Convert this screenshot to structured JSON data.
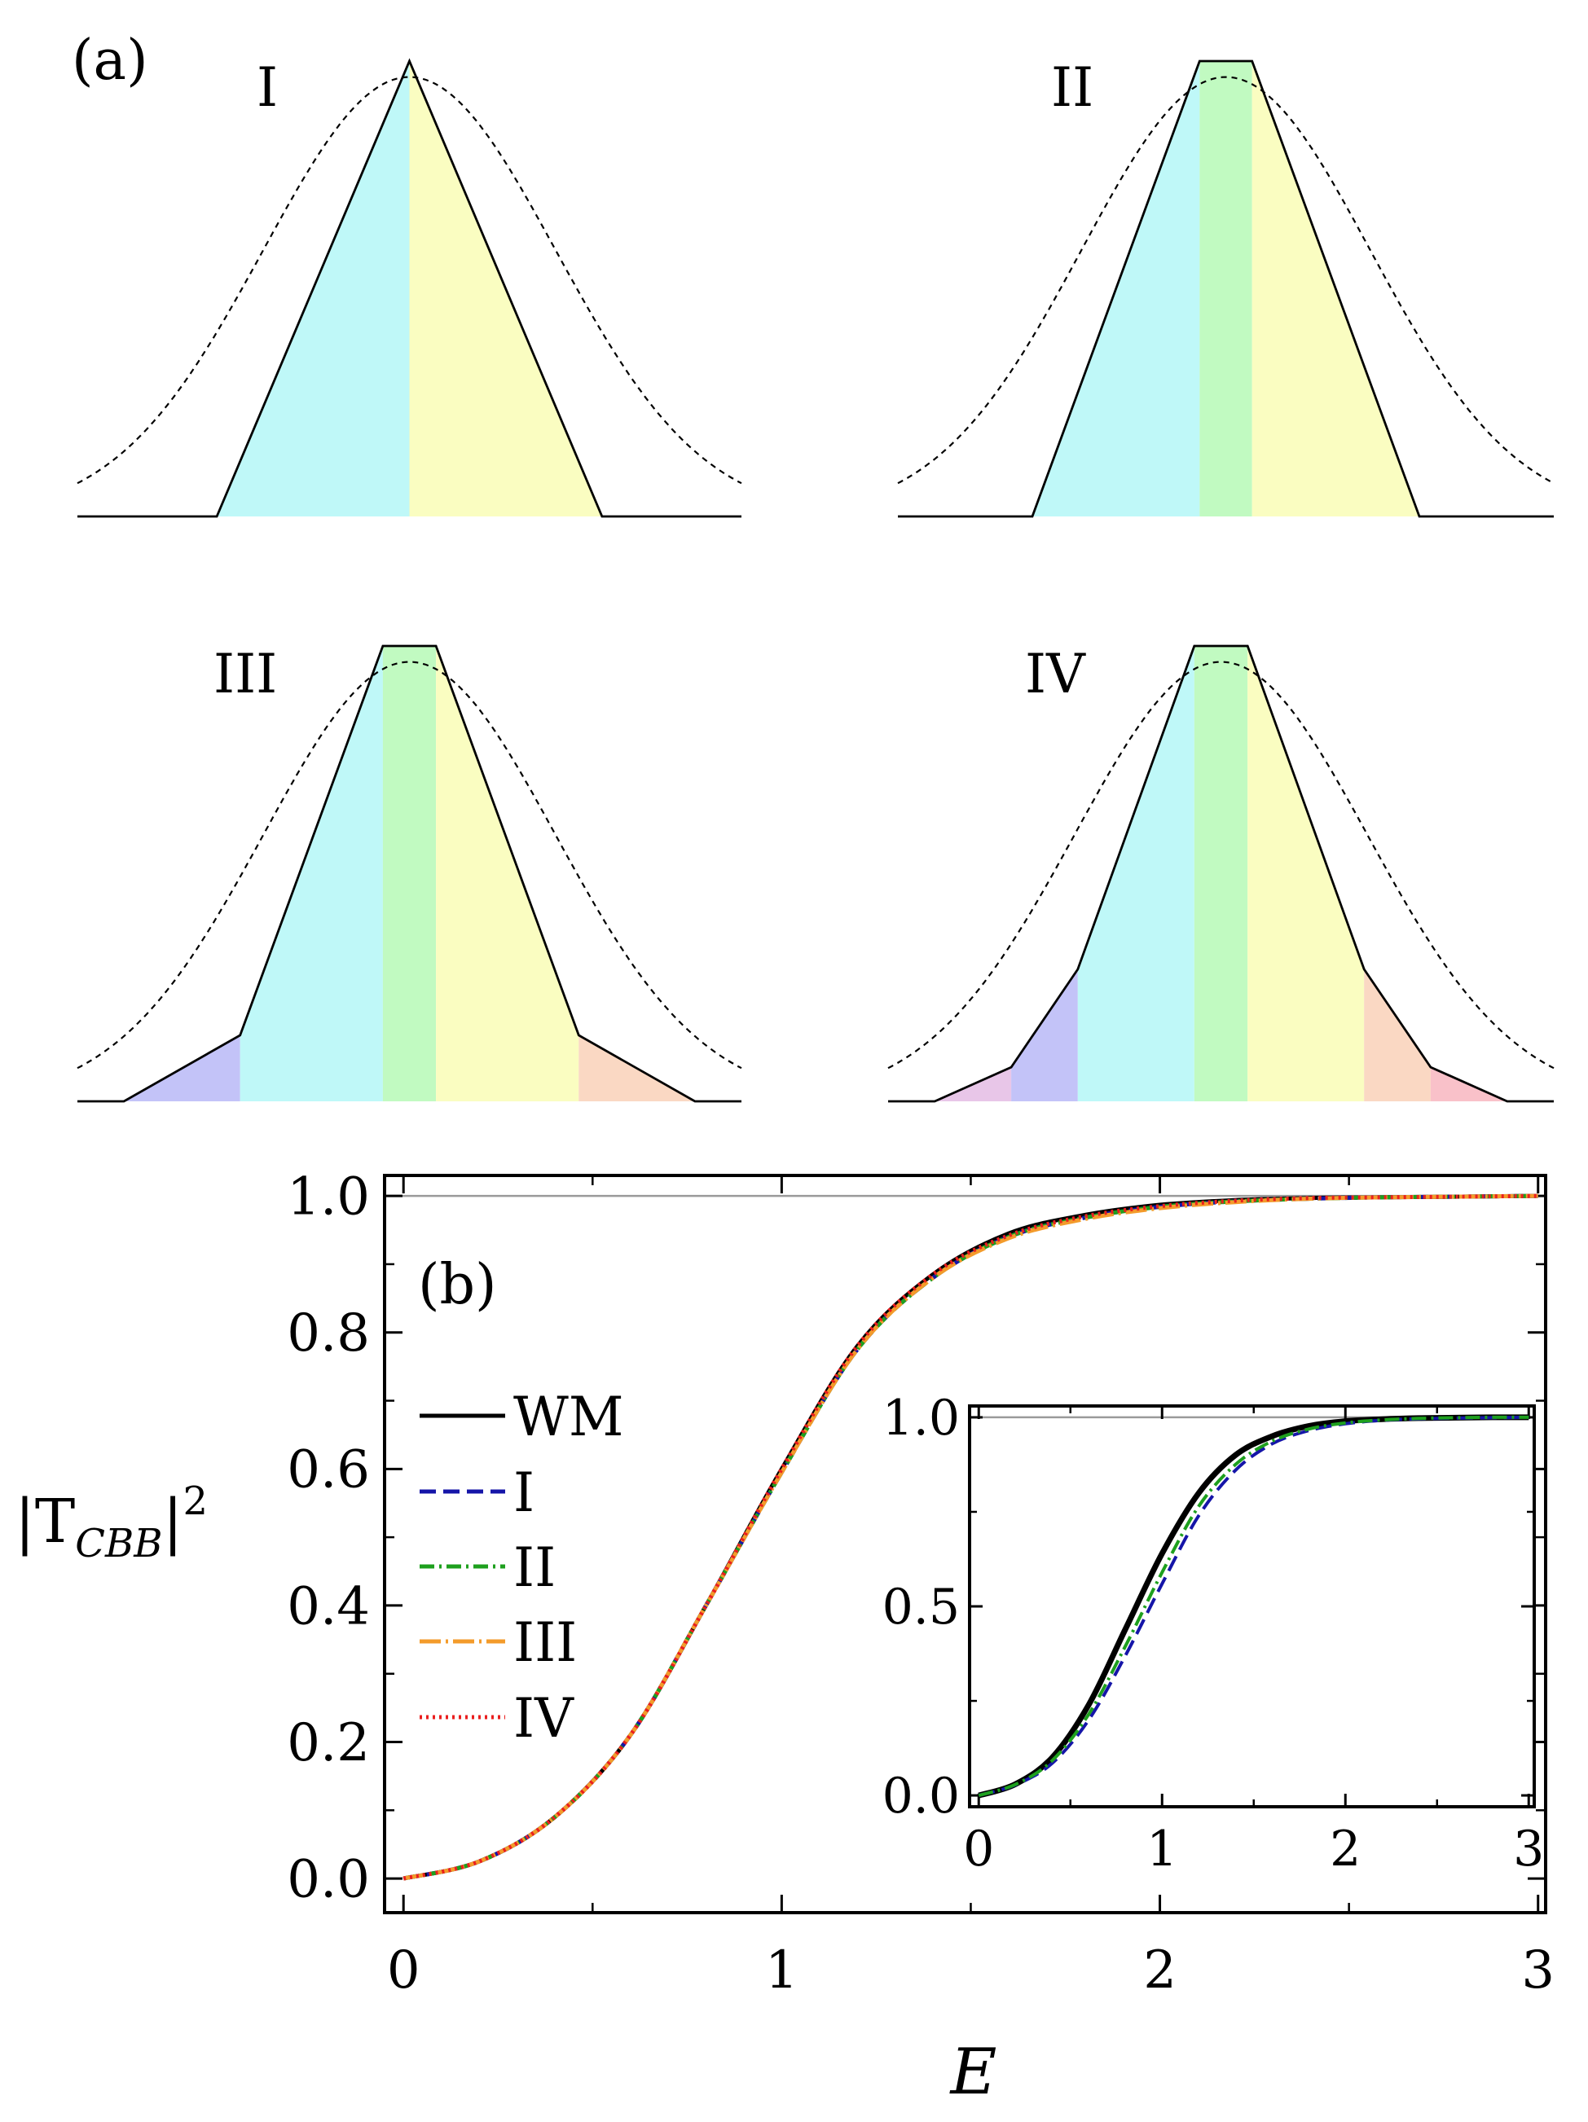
{
  "figure": {
    "background": "#ffffff"
  },
  "panel_a": {
    "label": "(a)",
    "gaussian_sigma": 0.22,
    "region_colors": {
      "cyan": "#bff8f8",
      "yellow": "#fafdc1",
      "green": "#c1fac1",
      "blue": "#c3c3f8",
      "orange": "#fad8c3",
      "pink": "#e8c6e8",
      "red": "#f9c1c9"
    },
    "shapes": [
      {
        "label": "I",
        "outline": [
          [
            -0.5,
            0
          ],
          [
            -0.29,
            0
          ],
          [
            0,
            1
          ],
          [
            0.29,
            0
          ],
          [
            0.5,
            0
          ]
        ],
        "regions": [
          {
            "color": "cyan",
            "from": -0.29,
            "to": 0
          },
          {
            "color": "yellow",
            "from": 0,
            "to": 0.29
          }
        ]
      },
      {
        "label": "II",
        "outline": [
          [
            -0.5,
            0
          ],
          [
            -0.295,
            0
          ],
          [
            -0.04,
            1
          ],
          [
            0.04,
            1
          ],
          [
            0.295,
            0
          ],
          [
            0.5,
            0
          ]
        ],
        "regions": [
          {
            "color": "cyan",
            "from": -0.295,
            "to": -0.04
          },
          {
            "color": "green",
            "from": -0.04,
            "to": 0.04
          },
          {
            "color": "yellow",
            "from": 0.04,
            "to": 0.295
          }
        ]
      },
      {
        "label": "III",
        "outline": [
          [
            -0.5,
            0
          ],
          [
            -0.43,
            0
          ],
          [
            -0.255,
            0.145
          ],
          [
            -0.04,
            1
          ],
          [
            0.04,
            1
          ],
          [
            0.255,
            0.145
          ],
          [
            0.43,
            0
          ],
          [
            0.5,
            0
          ]
        ],
        "regions": [
          {
            "color": "blue",
            "from": -0.43,
            "to": -0.255
          },
          {
            "color": "cyan",
            "from": -0.255,
            "to": -0.04
          },
          {
            "color": "green",
            "from": -0.04,
            "to": 0.04
          },
          {
            "color": "yellow",
            "from": 0.04,
            "to": 0.255
          },
          {
            "color": "orange",
            "from": 0.255,
            "to": 0.43
          }
        ]
      },
      {
        "label": "IV",
        "outline": [
          [
            -0.5,
            0
          ],
          [
            -0.43,
            0
          ],
          [
            -0.315,
            0.075
          ],
          [
            -0.215,
            0.29
          ],
          [
            -0.04,
            1
          ],
          [
            0.04,
            1
          ],
          [
            0.215,
            0.29
          ],
          [
            0.315,
            0.075
          ],
          [
            0.43,
            0
          ],
          [
            0.5,
            0
          ]
        ],
        "regions": [
          {
            "color": "pink",
            "from": -0.43,
            "to": -0.315
          },
          {
            "color": "blue",
            "from": -0.315,
            "to": -0.215
          },
          {
            "color": "cyan",
            "from": -0.215,
            "to": -0.04
          },
          {
            "color": "green",
            "from": -0.04,
            "to": 0.04
          },
          {
            "color": "yellow",
            "from": 0.04,
            "to": 0.215
          },
          {
            "color": "orange",
            "from": 0.215,
            "to": 0.315
          },
          {
            "color": "red",
            "from": 0.315,
            "to": 0.43
          }
        ]
      }
    ]
  },
  "chart_data": [
    {
      "type": "line",
      "panel": "(b)",
      "title": "",
      "xlabel": "E",
      "ylabel": "|T_CBB|^2",
      "ylabel_base": "|T",
      "ylabel_sub": "CBB",
      "ylabel_tail": "|",
      "ylabel_sup": "2",
      "xlim": [
        -0.05,
        3.02
      ],
      "ylim": [
        -0.05,
        1.03
      ],
      "xticks": [
        0,
        1,
        2,
        3
      ],
      "xtick_labels": [
        "0",
        "1",
        "2",
        "3"
      ],
      "yticks": [
        0.0,
        0.2,
        0.4,
        0.6,
        0.8,
        1.0
      ],
      "ytick_labels": [
        "0.0",
        "0.2",
        "0.4",
        "0.6",
        "0.8",
        "1.0"
      ],
      "reference_line_y": 1.0,
      "legend_position": "left",
      "series": [
        {
          "name": "WM",
          "color": "#000000",
          "dash": "solid",
          "x": [
            0,
            0.2,
            0.4,
            0.6,
            0.8,
            1.0,
            1.2,
            1.4,
            1.6,
            1.8,
            2.0,
            2.2,
            2.4,
            2.6,
            2.8,
            3.0
          ],
          "y": [
            0.0,
            0.025,
            0.09,
            0.21,
            0.4,
            0.6,
            0.78,
            0.885,
            0.945,
            0.972,
            0.987,
            0.994,
            0.997,
            0.998,
            0.999,
            1.0
          ]
        },
        {
          "name": "I",
          "color": "#1515a8",
          "dash": "dashed",
          "x": [
            0,
            0.2,
            0.4,
            0.6,
            0.8,
            1.0,
            1.2,
            1.4,
            1.6,
            1.8,
            2.0,
            2.2,
            2.4,
            2.6,
            2.8,
            3.0
          ],
          "y": [
            0.0,
            0.025,
            0.09,
            0.21,
            0.4,
            0.595,
            0.775,
            0.88,
            0.94,
            0.968,
            0.984,
            0.992,
            0.996,
            0.998,
            0.999,
            1.0
          ]
        },
        {
          "name": "II",
          "color": "#1ea01e",
          "dash": "dashdot",
          "x": [
            0,
            0.2,
            0.4,
            0.6,
            0.8,
            1.0,
            1.2,
            1.4,
            1.6,
            1.8,
            2.0,
            2.2,
            2.4,
            2.6,
            2.8,
            3.0
          ],
          "y": [
            0.0,
            0.025,
            0.09,
            0.21,
            0.4,
            0.595,
            0.775,
            0.88,
            0.94,
            0.968,
            0.984,
            0.992,
            0.996,
            0.998,
            0.999,
            1.0
          ]
        },
        {
          "name": "III",
          "color": "#f39b2b",
          "dash": "longdashdot",
          "x": [
            0,
            0.2,
            0.4,
            0.6,
            0.8,
            1.0,
            1.2,
            1.4,
            1.6,
            1.8,
            2.0,
            2.2,
            2.4,
            2.6,
            2.8,
            3.0
          ],
          "y": [
            0.0,
            0.025,
            0.09,
            0.21,
            0.4,
            0.595,
            0.775,
            0.88,
            0.938,
            0.966,
            0.982,
            0.991,
            0.996,
            0.998,
            0.999,
            1.0
          ]
        },
        {
          "name": "IV",
          "color": "#ea1f1f",
          "dash": "dotted",
          "x": [
            0,
            0.2,
            0.4,
            0.6,
            0.8,
            1.0,
            1.2,
            1.4,
            1.6,
            1.8,
            2.0,
            2.2,
            2.4,
            2.6,
            2.8,
            3.0
          ],
          "y": [
            0.0,
            0.025,
            0.09,
            0.21,
            0.4,
            0.6,
            0.78,
            0.885,
            0.942,
            0.97,
            0.985,
            0.993,
            0.997,
            0.998,
            0.999,
            1.0
          ]
        }
      ]
    },
    {
      "type": "line",
      "panel": "(b) inset",
      "xlim": [
        -0.05,
        3.03
      ],
      "ylim": [
        -0.03,
        1.03
      ],
      "xticks": [
        0,
        1,
        2,
        3
      ],
      "xtick_labels": [
        "0",
        "1",
        "2",
        "3"
      ],
      "yticks": [
        0.0,
        0.5,
        1.0
      ],
      "ytick_labels": [
        "0.0",
        "0.5",
        "1.0"
      ],
      "reference_line_y": 1.0,
      "series": [
        {
          "name": "WM",
          "color": "#000000",
          "dash": "solid",
          "width": 7,
          "x": [
            0,
            0.2,
            0.4,
            0.6,
            0.8,
            1.0,
            1.2,
            1.4,
            1.6,
            1.8,
            2.0,
            2.2,
            2.4,
            2.6,
            2.8,
            3.0
          ],
          "y": [
            0.0,
            0.03,
            0.1,
            0.24,
            0.44,
            0.64,
            0.8,
            0.9,
            0.95,
            0.977,
            0.99,
            0.995,
            0.998,
            0.999,
            1.0,
            1.0
          ]
        },
        {
          "name": "I",
          "color": "#1515a8",
          "dash": "dashed",
          "width": 4,
          "x": [
            0,
            0.2,
            0.4,
            0.6,
            0.8,
            1.0,
            1.2,
            1.4,
            1.6,
            1.8,
            2.0,
            2.2,
            2.4,
            2.6,
            2.8,
            3.0
          ],
          "y": [
            0.0,
            0.028,
            0.085,
            0.2,
            0.37,
            0.56,
            0.74,
            0.86,
            0.93,
            0.965,
            0.983,
            0.992,
            0.996,
            0.998,
            0.999,
            1.0
          ]
        },
        {
          "name": "II",
          "color": "#1ea01e",
          "dash": "dashdot",
          "width": 4,
          "x": [
            0,
            0.2,
            0.4,
            0.6,
            0.8,
            1.0,
            1.2,
            1.4,
            1.6,
            1.8,
            2.0,
            2.2,
            2.4,
            2.6,
            2.8,
            3.0
          ],
          "y": [
            0.0,
            0.029,
            0.092,
            0.215,
            0.395,
            0.59,
            0.765,
            0.875,
            0.937,
            0.969,
            0.985,
            0.993,
            0.997,
            0.999,
            1.0,
            1.0
          ]
        }
      ]
    }
  ]
}
